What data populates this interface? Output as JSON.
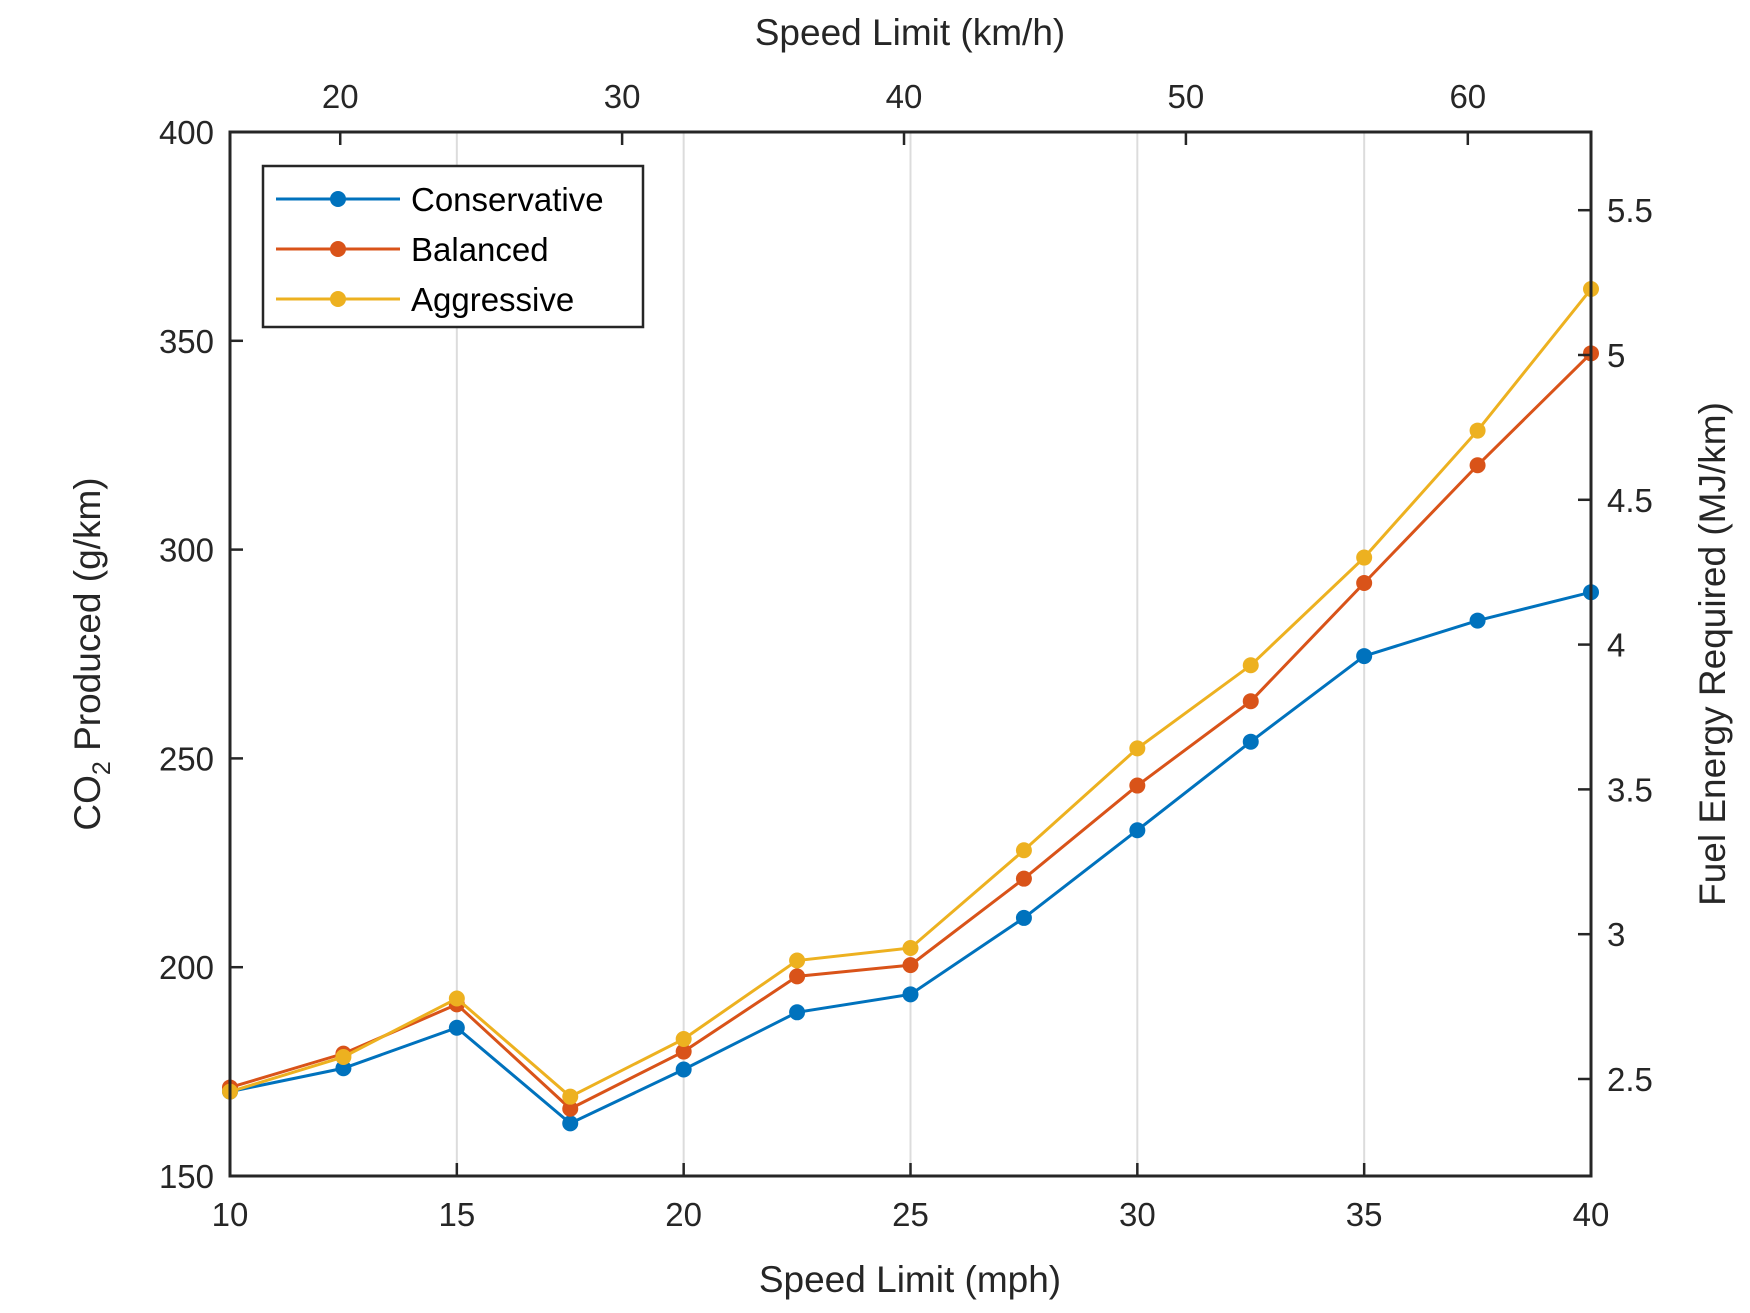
{
  "chart_data": {
    "type": "line",
    "xlabel": "Speed Limit (mph)",
    "x2label": "Speed Limit (km/h)",
    "ylabel": "CO2 Produced (g/km)",
    "y2label": "Fuel Energy Required (MJ/km)",
    "x": [
      10,
      12.5,
      15,
      17.5,
      20,
      22.5,
      25,
      27.5,
      30,
      32.5,
      35,
      37.5,
      40
    ],
    "xlim": [
      10,
      40
    ],
    "ylim": [
      150,
      400
    ],
    "y2lim": [
      2.165,
      5.77
    ],
    "x2lim": [
      16.09,
      64.37
    ],
    "xticks": [
      "10",
      "15",
      "20",
      "25",
      "30",
      "35",
      "40"
    ],
    "x2ticks": [
      "20",
      "30",
      "40",
      "50",
      "60"
    ],
    "yticks": [
      "150",
      "200",
      "250",
      "300",
      "350",
      "400"
    ],
    "y2ticks": [
      "2.5",
      "3",
      "3.5",
      "4",
      "4.5",
      "5",
      "5.5"
    ],
    "grid": "x-major",
    "legend_position": "top-left",
    "series": [
      {
        "name": "Conservative",
        "color": "#0072BD",
        "values": [
          170.2,
          175.8,
          185.5,
          162.6,
          175.5,
          189.2,
          193.5,
          211.8,
          232.8,
          254.0,
          274.5,
          283.0,
          289.8
        ]
      },
      {
        "name": "Balanced",
        "color": "#D95319",
        "values": [
          171.2,
          179.3,
          191.1,
          166.1,
          179.8,
          197.8,
          200.5,
          221.2,
          243.5,
          263.7,
          292.0,
          320.2,
          347.0
        ]
      },
      {
        "name": "Aggressive",
        "color": "#EDB120",
        "values": [
          170.2,
          178.5,
          192.5,
          169.0,
          182.8,
          201.6,
          204.6,
          228.0,
          252.4,
          272.3,
          298.1,
          328.5,
          362.4
        ]
      }
    ]
  }
}
